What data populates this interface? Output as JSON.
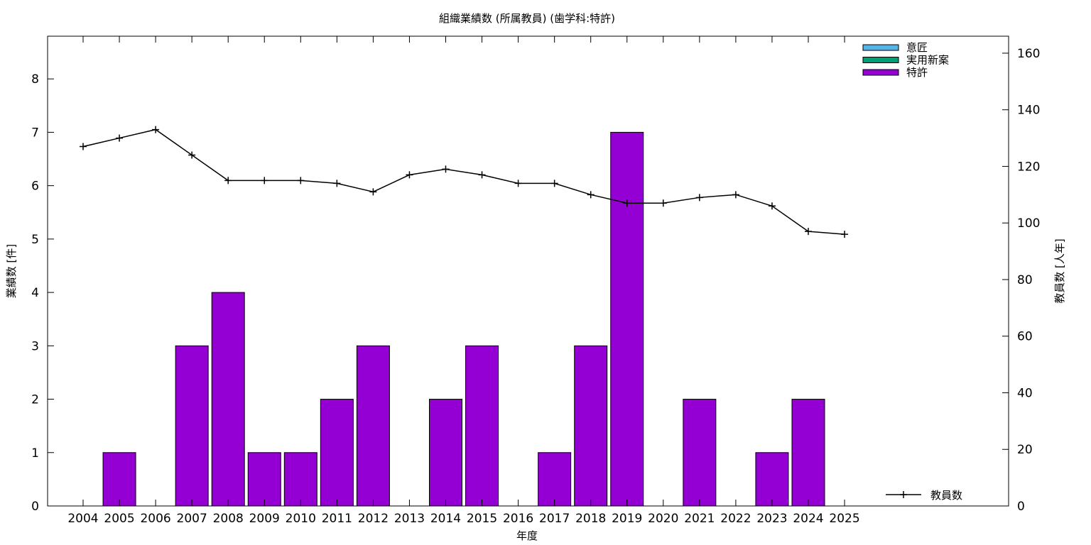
{
  "chart_data": {
    "type": "bar",
    "title": "組織業績数 (所属教員) (歯学科:特許)",
    "xlabel": "年度",
    "ylabel": "業績数 [件]",
    "y2label": "教員数 [人年]",
    "categories": [
      "2004",
      "2005",
      "2006",
      "2007",
      "2008",
      "2009",
      "2010",
      "2011",
      "2012",
      "2013",
      "2014",
      "2015",
      "2016",
      "2017",
      "2018",
      "2019",
      "2020",
      "2021",
      "2022",
      "2023",
      "2024",
      "2025"
    ],
    "ylim": [
      0,
      8.8
    ],
    "yticks": [
      0,
      1,
      2,
      3,
      4,
      5,
      6,
      7,
      8
    ],
    "y2lim": [
      0,
      166
    ],
    "y2ticks": [
      0,
      20,
      40,
      60,
      80,
      100,
      120,
      140,
      160
    ],
    "series": [
      {
        "name": "意匠",
        "color": "#56b4e9",
        "values": [
          0,
          0,
          0,
          0,
          0,
          0,
          0,
          0,
          0,
          0,
          0,
          0,
          0,
          0,
          0,
          0,
          0,
          0,
          0,
          0,
          0,
          0
        ]
      },
      {
        "name": "実用新案",
        "color": "#009e73",
        "values": [
          0,
          0,
          0,
          0,
          0,
          0,
          0,
          0,
          0,
          0,
          0,
          0,
          0,
          0,
          0,
          0,
          0,
          0,
          0,
          0,
          0,
          0
        ]
      },
      {
        "name": "特許",
        "color": "#9400d3",
        "values": [
          0,
          1,
          0,
          3,
          4,
          1,
          1,
          2,
          3,
          0,
          2,
          3,
          0,
          1,
          3,
          7,
          0,
          2,
          0,
          1,
          2,
          0
        ]
      }
    ],
    "line_series": {
      "name": "教員数",
      "color": "#000000",
      "axis": "y2",
      "values": [
        127,
        130,
        133,
        124,
        115,
        115,
        115,
        114,
        111,
        117,
        119,
        117,
        114,
        114,
        110,
        107,
        107,
        109,
        110,
        106,
        97,
        96
      ]
    },
    "legend_position": "top-right"
  }
}
